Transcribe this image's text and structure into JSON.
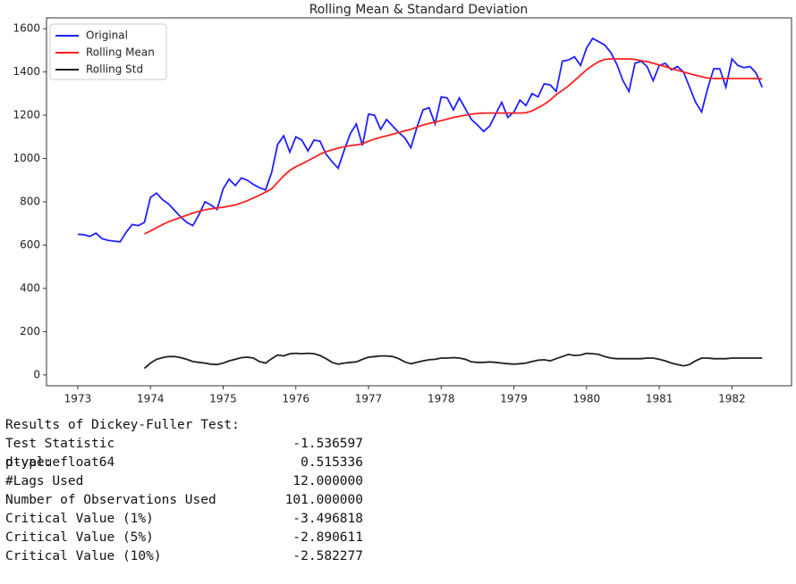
{
  "chart_data": {
    "type": "line",
    "title": "Rolling Mean & Standard Deviation",
    "x": [
      1973.0,
      1973.083,
      1973.167,
      1973.25,
      1973.333,
      1973.417,
      1973.5,
      1973.583,
      1973.667,
      1973.75,
      1973.833,
      1973.917,
      1974.0,
      1974.083,
      1974.167,
      1974.25,
      1974.333,
      1974.417,
      1974.5,
      1974.583,
      1974.667,
      1974.75,
      1974.833,
      1974.917,
      1975.0,
      1975.083,
      1975.167,
      1975.25,
      1975.333,
      1975.417,
      1975.5,
      1975.583,
      1975.667,
      1975.75,
      1975.833,
      1975.917,
      1976.0,
      1976.083,
      1976.167,
      1976.25,
      1976.333,
      1976.417,
      1976.5,
      1976.583,
      1976.667,
      1976.75,
      1976.833,
      1976.917,
      1977.0,
      1977.083,
      1977.167,
      1977.25,
      1977.333,
      1977.417,
      1977.5,
      1977.583,
      1977.667,
      1977.75,
      1977.833,
      1977.917,
      1978.0,
      1978.083,
      1978.167,
      1978.25,
      1978.333,
      1978.417,
      1978.5,
      1978.583,
      1978.667,
      1978.75,
      1978.833,
      1978.917,
      1979.0,
      1979.083,
      1979.167,
      1979.25,
      1979.333,
      1979.417,
      1979.5,
      1979.583,
      1979.667,
      1979.75,
      1979.833,
      1979.917,
      1980.0,
      1980.083,
      1980.167,
      1980.25,
      1980.333,
      1980.417,
      1980.5,
      1980.583,
      1980.667,
      1980.75,
      1980.833,
      1980.917,
      1981.0,
      1981.083,
      1981.167,
      1981.25,
      1981.333,
      1981.417,
      1981.5,
      1981.583,
      1981.667,
      1981.75,
      1981.833,
      1981.917,
      1982.0,
      1982.083,
      1982.167,
      1982.25,
      1982.333,
      1982.417
    ],
    "series": [
      {
        "name": "Original",
        "color": "#2020ff",
        "values": [
          650,
          648,
          640,
          655,
          630,
          622,
          618,
          615,
          660,
          695,
          690,
          705,
          820,
          840,
          810,
          790,
          760,
          730,
          705,
          690,
          740,
          800,
          785,
          765,
          860,
          905,
          875,
          910,
          900,
          880,
          865,
          855,
          935,
          1065,
          1105,
          1030,
          1100,
          1085,
          1035,
          1085,
          1080,
          1020,
          985,
          955,
          1040,
          1115,
          1160,
          1060,
          1205,
          1200,
          1135,
          1180,
          1150,
          1120,
          1095,
          1050,
          1145,
          1225,
          1235,
          1160,
          1285,
          1280,
          1225,
          1280,
          1230,
          1180,
          1155,
          1125,
          1150,
          1205,
          1260,
          1190,
          1215,
          1270,
          1245,
          1300,
          1285,
          1345,
          1340,
          1310,
          1450,
          1455,
          1470,
          1430,
          1510,
          1555,
          1540,
          1525,
          1490,
          1435,
          1360,
          1310,
          1440,
          1450,
          1425,
          1360,
          1430,
          1440,
          1410,
          1425,
          1400,
          1330,
          1260,
          1215,
          1325,
          1415,
          1415,
          1330,
          1460,
          1430,
          1420,
          1425,
          1395,
          1330
        ]
      },
      {
        "name": "Rolling Mean",
        "color": "#ff2020",
        "values": [
          null,
          null,
          null,
          null,
          null,
          null,
          null,
          null,
          null,
          null,
          null,
          652,
          665,
          680,
          695,
          708,
          718,
          728,
          738,
          748,
          756,
          763,
          768,
          772,
          775,
          780,
          785,
          795,
          805,
          818,
          830,
          845,
          860,
          890,
          920,
          945,
          962,
          975,
          990,
          1005,
          1020,
          1032,
          1040,
          1048,
          1055,
          1060,
          1063,
          1068,
          1080,
          1090,
          1098,
          1105,
          1112,
          1120,
          1128,
          1135,
          1145,
          1155,
          1162,
          1168,
          1175,
          1182,
          1190,
          1195,
          1200,
          1205,
          1208,
          1210,
          1210,
          1210,
          1210,
          1210,
          1210,
          1210,
          1212,
          1220,
          1235,
          1250,
          1270,
          1295,
          1315,
          1335,
          1360,
          1385,
          1410,
          1430,
          1448,
          1458,
          1460,
          1460,
          1460,
          1460,
          1458,
          1452,
          1448,
          1440,
          1432,
          1425,
          1415,
          1408,
          1400,
          1392,
          1385,
          1378,
          1372,
          1370,
          1370,
          1370,
          1370,
          1370,
          1370,
          1370,
          1370,
          1368
        ]
      },
      {
        "name": "Rolling Std",
        "color": "#202020",
        "values": [
          null,
          null,
          null,
          null,
          null,
          null,
          null,
          null,
          null,
          null,
          null,
          30,
          55,
          72,
          80,
          85,
          85,
          80,
          72,
          62,
          58,
          55,
          50,
          48,
          55,
          65,
          72,
          80,
          82,
          78,
          62,
          55,
          75,
          92,
          88,
          98,
          100,
          98,
          100,
          98,
          90,
          75,
          58,
          50,
          55,
          58,
          60,
          72,
          82,
          85,
          88,
          88,
          85,
          75,
          60,
          52,
          58,
          65,
          70,
          72,
          78,
          78,
          80,
          78,
          72,
          60,
          58,
          58,
          60,
          58,
          55,
          52,
          50,
          52,
          55,
          62,
          68,
          70,
          65,
          75,
          85,
          95,
          90,
          92,
          100,
          98,
          95,
          85,
          78,
          75,
          75,
          75,
          75,
          75,
          78,
          78,
          72,
          65,
          55,
          48,
          42,
          48,
          65,
          78,
          78,
          75,
          75,
          75,
          78,
          78,
          78,
          78,
          78,
          78
        ]
      }
    ],
    "xlim": [
      1972.57,
      1982.82
    ],
    "xticks": [
      1973,
      1974,
      1975,
      1976,
      1977,
      1978,
      1979,
      1980,
      1981,
      1982
    ],
    "ylim": [
      -50,
      1650
    ],
    "yticks": [
      0,
      200,
      400,
      600,
      800,
      1000,
      1200,
      1400,
      1600
    ],
    "legend": "upper left"
  },
  "output": {
    "heading": "Results of Dickey-Fuller Test:",
    "rows": [
      [
        "Test Statistic",
        "-1.536597"
      ],
      [
        "p-value",
        "0.515336"
      ],
      [
        "#Lags Used",
        "12.000000"
      ],
      [
        "Number of Observations Used",
        "101.000000"
      ],
      [
        "Critical Value (1%)",
        "-3.496818"
      ],
      [
        "Critical Value (5%)",
        "-2.890611"
      ],
      [
        "Critical Value (10%)",
        "-2.582277"
      ]
    ],
    "footer": "dtype: float64"
  }
}
